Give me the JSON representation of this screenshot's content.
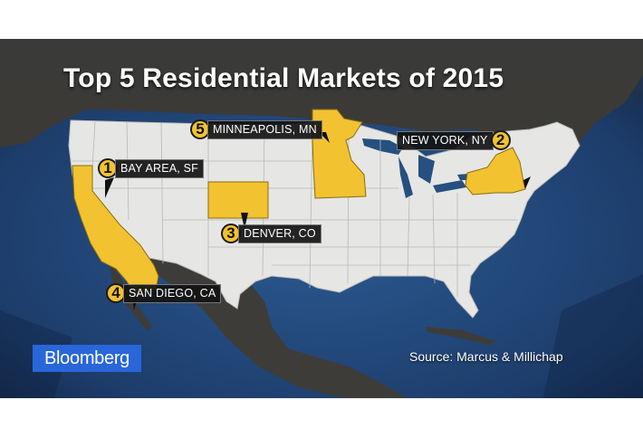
{
  "title": "Top 5 Residential Markets of 2015",
  "markets": [
    {
      "rank": "1",
      "label": "BAY AREA, SF"
    },
    {
      "rank": "2",
      "label": "NEW YORK, NY"
    },
    {
      "rank": "3",
      "label": "DENVER, CO"
    },
    {
      "rank": "4",
      "label": "SAN DIEGO, CA"
    },
    {
      "rank": "5",
      "label": "MINNEAPOLIS, MN"
    }
  ],
  "source": "Source: Marcus & Millichap",
  "logo": "Bloomberg",
  "colors": {
    "ocean": "#1d3d6b",
    "land_us": "#e6e6e4",
    "land_other": "#3a3a38",
    "highlight": "#f2c230",
    "logo_bg": "#2966d8"
  }
}
